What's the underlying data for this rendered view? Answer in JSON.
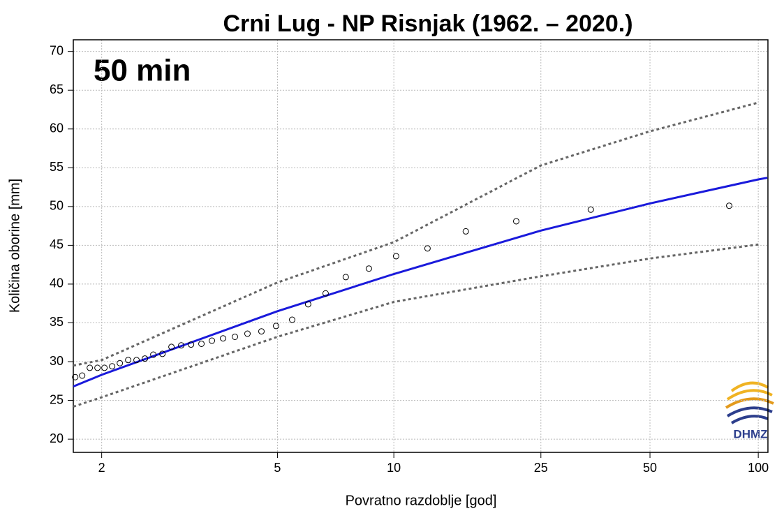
{
  "chart_data": {
    "type": "line",
    "title": "Crni Lug - NP Risnjak (1962. – 2020.)",
    "annotation": "50 min",
    "xlabel": "Povratno razdoblje [god]",
    "ylabel": "Količina oborine [mm]",
    "logo": "DHMZ",
    "xscale": "gumbel",
    "xlim": [
      1.77,
      106.4
    ],
    "ylim": [
      18.3,
      71.5
    ],
    "xticks": [
      2,
      5,
      10,
      25,
      50,
      100
    ],
    "yticks": [
      20,
      25,
      30,
      35,
      40,
      45,
      50,
      55,
      60,
      65,
      70
    ],
    "grid": true,
    "series": [
      {
        "name": "fit",
        "color": "#1a1adb",
        "style": "solid",
        "x": [
          1.77,
          2,
          5,
          10,
          25,
          50,
          100,
          106
        ],
        "values": [
          26.8,
          28.3,
          36.5,
          41.3,
          46.9,
          50.4,
          53.5,
          53.7
        ]
      },
      {
        "name": "upper",
        "color": "#666666",
        "style": "dotted",
        "x": [
          1.77,
          2,
          5,
          10,
          25,
          50,
          100
        ],
        "values": [
          29.5,
          30.2,
          40.2,
          45.4,
          55.3,
          59.7,
          63.4
        ]
      },
      {
        "name": "lower",
        "color": "#666666",
        "style": "dotted",
        "x": [
          1.77,
          2,
          5,
          10,
          25,
          50,
          100
        ],
        "values": [
          24.2,
          25.4,
          33.2,
          37.7,
          41.0,
          43.3,
          45.1
        ]
      },
      {
        "name": "observed",
        "color": "#000000",
        "style": "points",
        "x": [
          1.784,
          1.837,
          1.898,
          1.963,
          2.025,
          2.097,
          2.173,
          2.26,
          2.352,
          2.45,
          2.554,
          2.673,
          2.799,
          2.944,
          3.099,
          3.275,
          3.465,
          3.682,
          3.931,
          4.216,
          4.562,
          4.96,
          5.444,
          5.977,
          6.627,
          7.474,
          8.591,
          10.14,
          12.3,
          15.6,
          21.4,
          34.3,
          83
        ],
        "values": [
          28.0,
          28.2,
          29.2,
          29.2,
          29.2,
          29.4,
          29.8,
          30.2,
          30.2,
          30.4,
          30.9,
          31.0,
          31.9,
          32.1,
          32.2,
          32.3,
          32.7,
          33.0,
          33.2,
          33.6,
          33.9,
          34.6,
          35.4,
          37.4,
          38.8,
          40.9,
          42.0,
          43.6,
          44.6,
          46.8,
          48.1,
          49.6,
          50.1
        ]
      }
    ]
  }
}
